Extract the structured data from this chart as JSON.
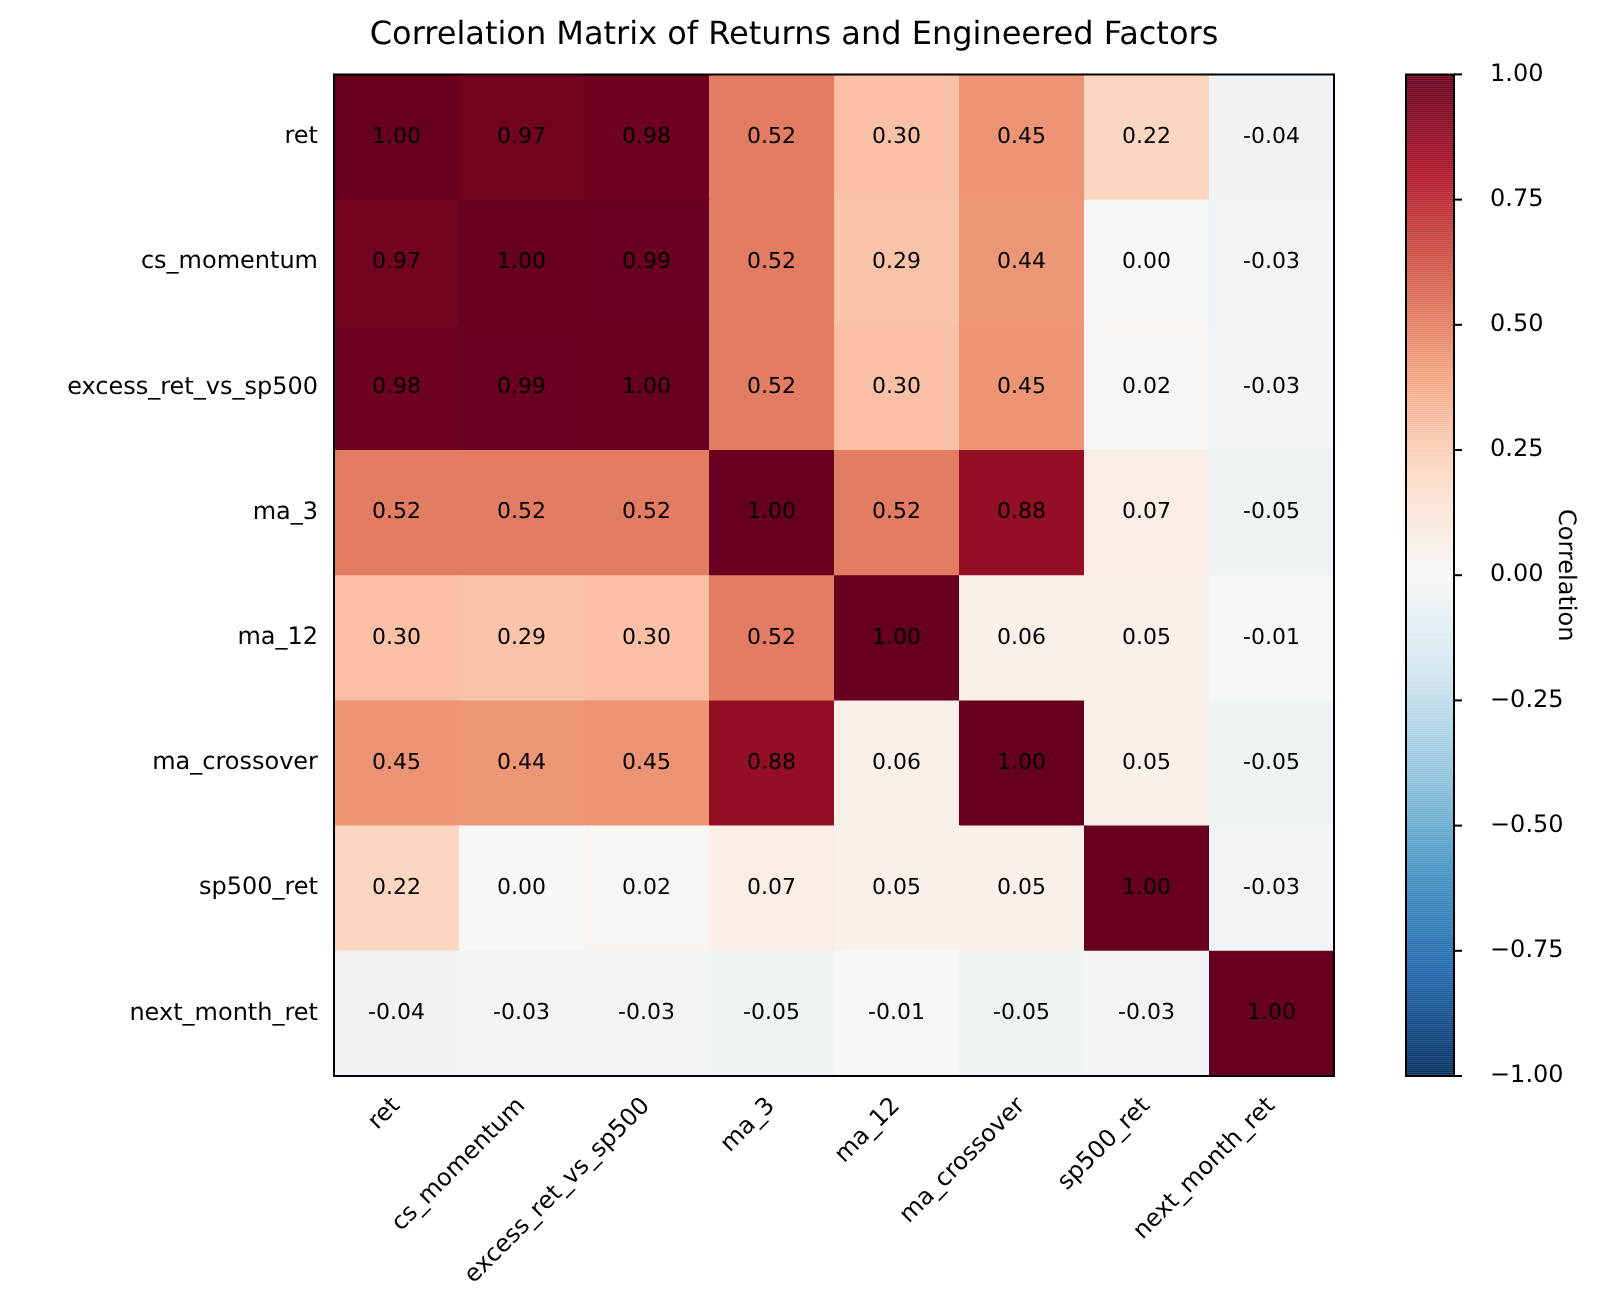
{
  "chart_data": {
    "type": "heatmap",
    "title": "Correlation Matrix of Returns and Engineered Factors",
    "clabel": "Correlation",
    "categories": [
      "ret",
      "cs_momentum",
      "excess_ret_vs_sp500",
      "ma_3",
      "ma_12",
      "ma_crossover",
      "sp500_ret",
      "next_month_ret"
    ],
    "y_categories": [
      "ret",
      "cs_momentum",
      "excess_ret_vs_sp500",
      "ma_3",
      "ma_12",
      "ma_crossover",
      "sp500_ret",
      "next_month_ret"
    ],
    "cells": [
      [
        1.0,
        0.97,
        0.98,
        0.52,
        0.3,
        0.45,
        0.22,
        -0.04
      ],
      [
        0.97,
        1.0,
        0.99,
        0.52,
        0.29,
        0.44,
        0.0,
        -0.03
      ],
      [
        0.98,
        0.99,
        1.0,
        0.52,
        0.3,
        0.45,
        0.02,
        -0.03
      ],
      [
        0.52,
        0.52,
        0.52,
        1.0,
        0.52,
        0.88,
        0.07,
        -0.05
      ],
      [
        0.3,
        0.29,
        0.3,
        0.52,
        1.0,
        0.06,
        0.05,
        -0.01
      ],
      [
        0.45,
        0.44,
        0.45,
        0.88,
        0.06,
        1.0,
        0.05,
        -0.05
      ],
      [
        0.22,
        0.0,
        0.02,
        0.07,
        0.05,
        0.05,
        1.0,
        -0.03
      ],
      [
        -0.04,
        -0.03,
        -0.03,
        -0.05,
        -0.01,
        -0.05,
        -0.03,
        1.0
      ]
    ],
    "cell_labels": [
      [
        "1.00",
        "0.97",
        "0.98",
        "0.52",
        "0.30",
        "0.45",
        "0.22",
        "-0.04"
      ],
      [
        "0.97",
        "1.00",
        "0.99",
        "0.52",
        "0.29",
        "0.44",
        "0.00",
        "-0.03"
      ],
      [
        "0.98",
        "0.99",
        "1.00",
        "0.52",
        "0.30",
        "0.45",
        "0.02",
        "-0.03"
      ],
      [
        "0.52",
        "0.52",
        "0.52",
        "1.00",
        "0.52",
        "0.88",
        "0.07",
        "-0.05"
      ],
      [
        "0.30",
        "0.29",
        "0.30",
        "0.52",
        "1.00",
        "0.06",
        "0.05",
        "-0.01"
      ],
      [
        "0.45",
        "0.44",
        "0.45",
        "0.88",
        "0.06",
        "1.00",
        "0.05",
        "-0.05"
      ],
      [
        "0.22",
        "0.00",
        "0.02",
        "0.07",
        "0.05",
        "0.05",
        "1.00",
        "-0.03"
      ],
      [
        "-0.04",
        "-0.03",
        "-0.03",
        "-0.05",
        "-0.01",
        "-0.05",
        "-0.03",
        "1.00"
      ]
    ],
    "clim": [
      -1,
      1
    ],
    "cticks": [
      {
        "value": -1,
        "label": "−1.00"
      },
      {
        "value": -0.75,
        "label": "−0.75"
      },
      {
        "value": -0.5,
        "label": "−0.50"
      },
      {
        "value": -0.25,
        "label": "−0.25"
      },
      {
        "value": 0,
        "label": "0.00"
      },
      {
        "value": 0.25,
        "label": "0.25"
      },
      {
        "value": 0.5,
        "label": "0.50"
      },
      {
        "value": 0.75,
        "label": "0.75"
      },
      {
        "value": 1,
        "label": "1.00"
      }
    ],
    "data_labels": true,
    "grid": false,
    "legend": false
  }
}
